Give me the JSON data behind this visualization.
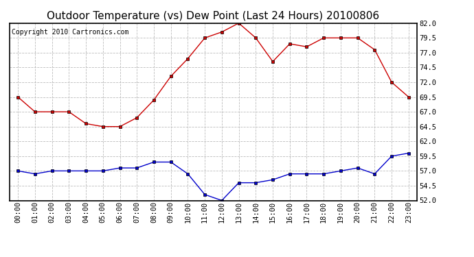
{
  "title": "Outdoor Temperature (vs) Dew Point (Last 24 Hours) 20100806",
  "copyright": "Copyright 2010 Cartronics.com",
  "x_labels": [
    "00:00",
    "01:00",
    "02:00",
    "03:00",
    "04:00",
    "05:00",
    "06:00",
    "07:00",
    "08:00",
    "09:00",
    "10:00",
    "11:00",
    "12:00",
    "13:00",
    "14:00",
    "15:00",
    "16:00",
    "17:00",
    "18:00",
    "19:00",
    "20:00",
    "21:00",
    "22:00",
    "23:00"
  ],
  "temp_values": [
    69.5,
    67.0,
    67.0,
    67.0,
    65.0,
    64.5,
    64.5,
    66.0,
    69.0,
    73.0,
    76.0,
    79.5,
    80.5,
    82.0,
    79.5,
    75.5,
    78.5,
    78.0,
    79.5,
    79.5,
    79.5,
    77.5,
    72.0,
    69.5
  ],
  "dew_values": [
    57.0,
    56.5,
    57.0,
    57.0,
    57.0,
    57.0,
    57.5,
    57.5,
    58.5,
    58.5,
    56.5,
    53.0,
    52.0,
    55.0,
    55.0,
    55.5,
    56.5,
    56.5,
    56.5,
    57.0,
    57.5,
    56.5,
    59.5,
    60.0
  ],
  "ylim": [
    52.0,
    82.0
  ],
  "yticks": [
    52.0,
    54.5,
    57.0,
    59.5,
    62.0,
    64.5,
    67.0,
    69.5,
    72.0,
    74.5,
    77.0,
    79.5,
    82.0
  ],
  "temp_color": "#cc0000",
  "dew_color": "#0000cc",
  "grid_color": "#bbbbbb",
  "bg_color": "#ffffff",
  "title_fontsize": 11,
  "copyright_fontsize": 7,
  "tick_fontsize": 7.5
}
